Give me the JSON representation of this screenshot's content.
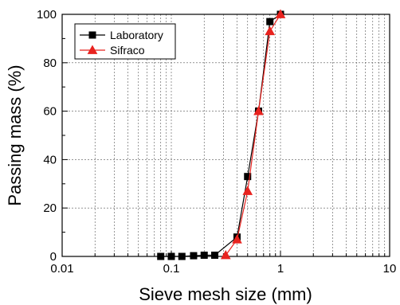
{
  "chart_data": {
    "type": "line",
    "xlabel": "Sieve mesh size (mm)",
    "ylabel": "Passing mass (%)",
    "xscale": "log",
    "xlim": [
      0.01,
      10
    ],
    "ylim": [
      0,
      100
    ],
    "grid": true,
    "legend_position": "top-left",
    "x_ticks": [
      "0.01",
      "0.1",
      "1",
      "10"
    ],
    "y_ticks": [
      "0",
      "20",
      "40",
      "60",
      "80",
      "100"
    ],
    "series": [
      {
        "name": "Laboratory",
        "color": "#000000",
        "marker": "square",
        "x": [
          0.08,
          0.1,
          0.125,
          0.16,
          0.2,
          0.25,
          0.4,
          0.5,
          0.63,
          0.8,
          1.0
        ],
        "y": [
          0,
          0,
          0,
          0.3,
          0.5,
          0.5,
          8,
          33,
          60,
          97,
          100
        ]
      },
      {
        "name": "Sifraco",
        "color": "#e8231f",
        "marker": "triangle",
        "x": [
          0.315,
          0.4,
          0.5,
          0.63,
          0.8,
          1.0
        ],
        "y": [
          0.5,
          7,
          27,
          60,
          93,
          100
        ]
      }
    ]
  }
}
